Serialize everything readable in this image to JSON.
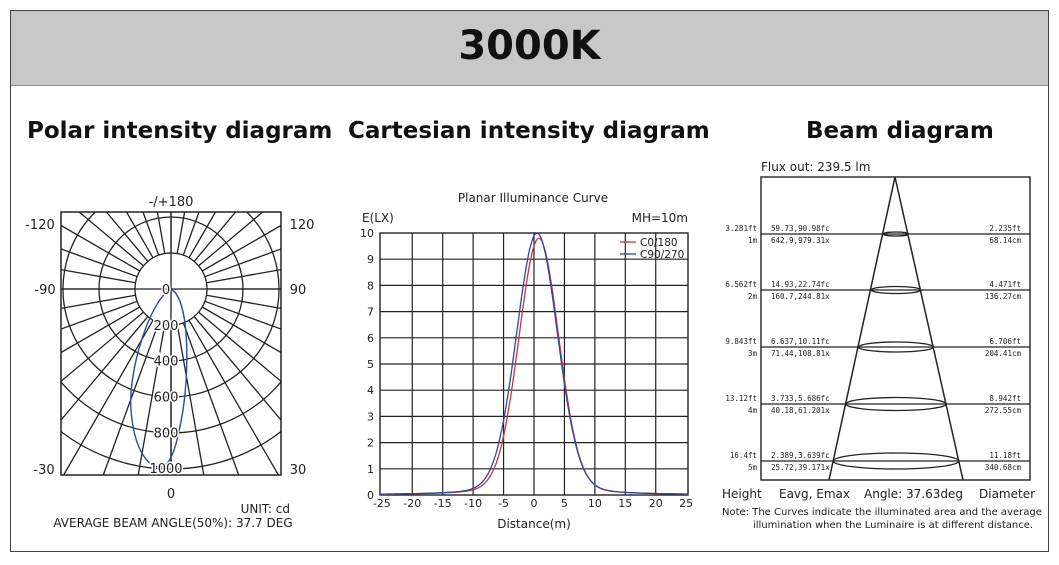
{
  "title": "3000K",
  "sections": {
    "polar": "Polar intensity diagram",
    "cartesian": "Cartesian intensity diagram",
    "beam": "Beam diagram"
  },
  "chart_data": [
    {
      "type": "polar",
      "title": "Polar intensity diagram",
      "angle_labels": {
        "top": "-/+180",
        "top_left": "-120",
        "top_right": "120",
        "left": "-90",
        "right": "90",
        "bottom_left": "-30",
        "bottom_right": "30",
        "bottom": "0"
      },
      "radial_ticks": [
        "0",
        "200",
        "400",
        "600",
        "800",
        "1000"
      ],
      "unit": "UNIT: cd",
      "beam_angle": "AVERAGE BEAM ANGLE(50%): 37.7 DEG",
      "peak_cd": 1000,
      "series_color": "#2a4aa0"
    },
    {
      "type": "line",
      "title": "Planar Illuminance Curve",
      "ylabel": "E(LX)",
      "xlabel": "Distance(m)",
      "note": "MH=10m",
      "x_ticks": [
        "-25",
        "-20",
        "-15",
        "-10",
        "-5",
        "0",
        "5",
        "10",
        "15",
        "20",
        "25"
      ],
      "y_ticks": [
        "0",
        "1",
        "2",
        "3",
        "4",
        "5",
        "6",
        "7",
        "8",
        "9",
        "10"
      ],
      "xlim": [
        -25.3,
        25.3
      ],
      "ylim": [
        0,
        10
      ],
      "series": [
        {
          "name": "C0/180",
          "color": "#d03040",
          "peak_x": 0.8,
          "peak": 9.8,
          "width": 3.3
        },
        {
          "name": "C90/270",
          "color": "#2a4aa0",
          "peak_x": 0.5,
          "peak": 10,
          "width": 3.4
        }
      ]
    },
    {
      "type": "table",
      "title": "Beam diagram",
      "flux": "Flux out: 239.5 lm",
      "rows": [
        {
          "ft": "3.281ft",
          "m": "1m",
          "fc": "59.73,90.98fc",
          "lx": "642.9,979.31x",
          "dft": "2.235ft",
          "dcm": "68.14cm"
        },
        {
          "ft": "6.562ft",
          "m": "2m",
          "fc": "14.93,22.74fc",
          "lx": "160.7,244.81x",
          "dft": "4.471ft",
          "dcm": "136.27cm"
        },
        {
          "ft": "9.843ft",
          "m": "3m",
          "fc": "6.637,10.11fc",
          "lx": "71.44,108.81x",
          "dft": "6.706ft",
          "dcm": "204.41cm"
        },
        {
          "ft": "13.12ft",
          "m": "4m",
          "fc": "3.733,5.686fc",
          "lx": "40.18,61.201x",
          "dft": "8.942ft",
          "dcm": "272.55cm"
        },
        {
          "ft": "16.4ft",
          "m": "5m",
          "fc": "2.389,3.639fc",
          "lx": "25.72,39.171x",
          "dft": "11.18ft",
          "dcm": "340.68cm"
        }
      ],
      "footer": {
        "height": "Height",
        "eavg": "Eavg, Emax",
        "angle": "Angle: 37.63deg",
        "diameter": "Diameter"
      },
      "note1": "Note: The Curves indicate the illuminated area and the average",
      "note2": "illumination when the Luminaire is at different distance."
    }
  ]
}
